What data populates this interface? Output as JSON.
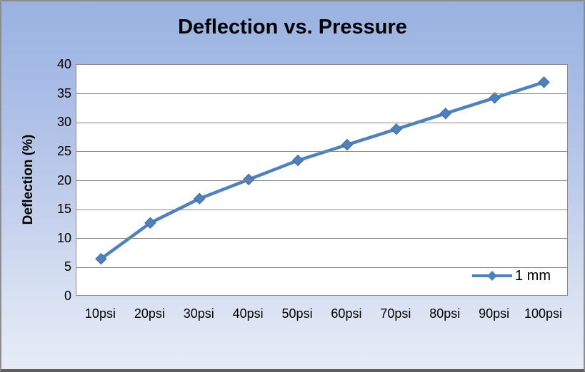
{
  "chart_data": {
    "type": "line",
    "title": "Deflection vs. Pressure",
    "xlabel": "",
    "ylabel": "Deflection (%)",
    "categories": [
      "10psi",
      "20psi",
      "30psi",
      "40psi",
      "50psi",
      "60psi",
      "70psi",
      "80psi",
      "90psi",
      "100psi"
    ],
    "series": [
      {
        "name": "1 mm",
        "values": [
          6.5,
          12.7,
          16.9,
          20.2,
          23.5,
          26.2,
          28.9,
          31.6,
          34.3,
          37.0
        ],
        "color": "#4F81BD",
        "marker": "diamond"
      }
    ],
    "ylim": [
      0,
      40
    ],
    "ytick_step": 5,
    "grid": true,
    "legend_position": "inside-bottom-right"
  },
  "colors": {
    "background_top": "#9AB2E1",
    "background_bottom": "#E6EBF7",
    "plot_fill": "#FFFFFF",
    "gridline": "#878787",
    "frame_border": "#8D8D8D",
    "series_blue": "#4F81BD",
    "text": "#000000"
  }
}
